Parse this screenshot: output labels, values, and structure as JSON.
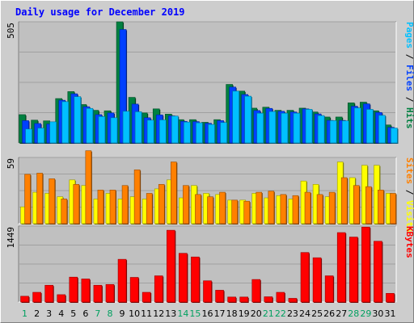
{
  "chart_data": [
    {
      "type": "bar",
      "panel": "pages-files-hits",
      "title": "Daily usage for December 2019",
      "ymax_label": "505",
      "ymax": 505,
      "right_labels": [
        "Pages",
        "Files",
        "Hits"
      ],
      "right_separator": " / ",
      "categories": [
        "1",
        "2",
        "3",
        "4",
        "5",
        "6",
        "7",
        "8",
        "9",
        "10",
        "11",
        "12",
        "13",
        "14",
        "15",
        "16",
        "17",
        "18",
        "19",
        "20",
        "21",
        "22",
        "23",
        "24",
        "25",
        "26",
        "27",
        "28",
        "29",
        "30",
        "31"
      ],
      "weekend_days": [
        "1",
        "7",
        "8",
        "14",
        "15",
        "21",
        "22",
        "28",
        "29"
      ],
      "series": [
        {
          "name": "Hits",
          "color": "#008040",
          "values": [
            118,
            95,
            92,
            185,
            214,
            160,
            136,
            134,
            505,
            190,
            125,
            142,
            120,
            97,
            97,
            86,
            97,
            244,
            216,
            145,
            149,
            136,
            136,
            145,
            129,
            108,
            108,
            167,
            170,
            134,
            75
          ]
        },
        {
          "name": "Files",
          "color": "#0040ff",
          "values": [
            93,
            81,
            79,
            178,
            205,
            151,
            118,
            125,
            473,
            162,
            105,
            117,
            113,
            90,
            89,
            82,
            93,
            233,
            202,
            135,
            144,
            132,
            129,
            142,
            121,
            94,
            94,
            153,
            163,
            127,
            65
          ]
        },
        {
          "name": "Pages",
          "color": "#00c0ff",
          "values": [
            58,
            62,
            88,
            172,
            193,
            144,
            110,
            105,
            132,
            130,
            95,
            96,
            112,
            87,
            84,
            77,
            85,
            216,
            195,
            124,
            131,
            124,
            124,
            140,
            114,
            93,
            92,
            146,
            140,
            115,
            62
          ]
        }
      ]
    },
    {
      "type": "bar",
      "panel": "visits-sites",
      "ymax_label": "59",
      "ymax": 59,
      "right_labels": [
        "Sites",
        "Visits"
      ],
      "right_separator": " / ",
      "categories": [
        "1",
        "2",
        "3",
        "4",
        "5",
        "6",
        "7",
        "8",
        "9",
        "10",
        "11",
        "12",
        "13",
        "14",
        "15",
        "16",
        "17",
        "18",
        "19",
        "20",
        "21",
        "22",
        "23",
        "24",
        "25",
        "26",
        "27",
        "28",
        "29",
        "30",
        "31"
      ],
      "series": [
        {
          "name": "Visits",
          "color": "#ffff00",
          "values": [
            15,
            28,
            27,
            24,
            39,
            34,
            22,
            27,
            22,
            24,
            22,
            31,
            39,
            23,
            34,
            27,
            26,
            21,
            21,
            27,
            23,
            25,
            22,
            38,
            35,
            24,
            55,
            41,
            52,
            52,
            27
          ]
        },
        {
          "name": "Sites",
          "color": "#ff8000",
          "values": [
            44,
            45,
            40,
            22,
            35,
            65,
            30,
            30,
            34,
            48,
            27,
            35,
            55,
            34,
            26,
            24,
            28,
            21,
            20,
            28,
            29,
            26,
            25,
            28,
            26,
            28,
            41,
            34,
            33,
            30,
            27
          ]
        }
      ]
    },
    {
      "type": "bar",
      "panel": "kbytes",
      "ymax_label": "1449",
      "ymax": 1449,
      "right_labels": [
        "KBytes"
      ],
      "categories": [
        "1",
        "2",
        "3",
        "4",
        "5",
        "6",
        "7",
        "8",
        "9",
        "10",
        "11",
        "12",
        "13",
        "14",
        "15",
        "16",
        "17",
        "18",
        "19",
        "20",
        "21",
        "22",
        "23",
        "24",
        "25",
        "26",
        "27",
        "28",
        "29",
        "30",
        "31"
      ],
      "series": [
        {
          "name": "KBytes",
          "color": "#ff0000",
          "values": [
            110,
            185,
            320,
            140,
            475,
            440,
            320,
            335,
            815,
            470,
            185,
            500,
            1370,
            930,
            860,
            405,
            225,
            95,
            95,
            430,
            100,
            185,
            70,
            945,
            845,
            500,
            1325,
            1240,
            1430,
            1160,
            165
          ]
        }
      ]
    }
  ],
  "colors": {
    "background": "#cdcdcd",
    "plot_background": "#c0c0c0",
    "title": "#0000ff",
    "axis_text": "#000000",
    "weekend_day": "#00a060",
    "gridline": "#a0a0a0",
    "separator": "#000000"
  }
}
